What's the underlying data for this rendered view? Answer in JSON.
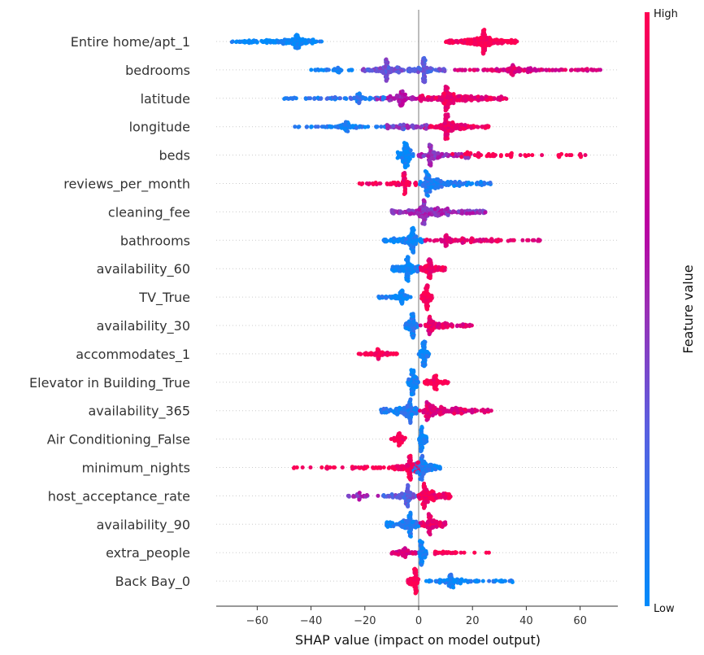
{
  "chart_data": {
    "type": "scatter",
    "subtype": "beeswarm",
    "xlabel": "SHAP value (impact on model output)",
    "xlim": [
      -76,
      74
    ],
    "xticks": [
      -60,
      -40,
      -20,
      0,
      20,
      40,
      60
    ],
    "grid": "horizontal dotted",
    "colorbar": {
      "label": "Feature value",
      "high": "High",
      "low": "Low",
      "colors": [
        "#008bfb",
        "#5a5fe0",
        "#9a2fb5",
        "#bc00a0",
        "#ff0052"
      ]
    },
    "features": [
      {
        "name": "Entire home/apt_1",
        "clusters": [
          {
            "range": [
              -70,
              -36
            ],
            "peak": -45,
            "n": 200,
            "value": 0.0
          },
          {
            "range": [
              10,
              37
            ],
            "peak": 24,
            "n": 250,
            "value": 1.0
          }
        ]
      },
      {
        "name": "bedrooms",
        "clusters": [
          {
            "range": [
              -40,
              -24
            ],
            "peak": -30,
            "n": 40,
            "value": 0.05
          },
          {
            "range": [
              -21,
              -5
            ],
            "peak": -12,
            "n": 150,
            "value": 0.35
          },
          {
            "range": [
              -4,
              10
            ],
            "peak": 2,
            "n": 130,
            "value": 0.3
          },
          {
            "range": [
              13,
              68
            ],
            "peak": 35,
            "n": 160,
            "value": 0.8
          }
        ]
      },
      {
        "name": "latitude",
        "clusters": [
          {
            "range": [
              -50,
              -10
            ],
            "peak": -22,
            "n": 90,
            "value": 0.15
          },
          {
            "range": [
              -16,
              0
            ],
            "peak": -6,
            "n": 90,
            "value": 0.6
          },
          {
            "range": [
              0,
              33
            ],
            "peak": 10,
            "n": 260,
            "value": 0.88
          }
        ]
      },
      {
        "name": "longitude",
        "clusters": [
          {
            "range": [
              -46,
              -5
            ],
            "peak": -27,
            "n": 110,
            "value": 0.1
          },
          {
            "range": [
              -12,
              5
            ],
            "peak": -6,
            "n": 70,
            "value": 0.45
          },
          {
            "range": [
              2,
              26
            ],
            "peak": 10,
            "n": 220,
            "value": 0.9
          }
        ]
      },
      {
        "name": "beds",
        "clusters": [
          {
            "range": [
              -8,
              -2
            ],
            "peak": -5,
            "n": 80,
            "value": 0.0
          },
          {
            "range": [
              0,
              20
            ],
            "peak": 4,
            "n": 80,
            "value": 0.5
          },
          {
            "range": [
              10,
              62
            ],
            "peak": 18,
            "n": 60,
            "value": 1.0
          }
        ]
      },
      {
        "name": "reviews_per_month",
        "clusters": [
          {
            "range": [
              -22,
              0
            ],
            "peak": -5,
            "n": 70,
            "value": 0.95
          },
          {
            "range": [
              0,
              27
            ],
            "peak": 3,
            "n": 160,
            "value": 0.1
          }
        ]
      },
      {
        "name": "cleaning_fee",
        "clusters": [
          {
            "range": [
              -10,
              25
            ],
            "peak": 2,
            "n": 260,
            "value": 0.5
          }
        ]
      },
      {
        "name": "bathrooms",
        "clusters": [
          {
            "range": [
              -13,
              2
            ],
            "peak": -2,
            "n": 120,
            "value": 0.05
          },
          {
            "range": [
              2,
              48
            ],
            "peak": 10,
            "n": 110,
            "value": 0.85
          }
        ]
      },
      {
        "name": "availability_60",
        "clusters": [
          {
            "range": [
              -10,
              0
            ],
            "peak": -4,
            "n": 150,
            "value": 0.05
          },
          {
            "range": [
              0,
              10
            ],
            "peak": 4,
            "n": 120,
            "value": 0.9
          }
        ]
      },
      {
        "name": "TV_True",
        "clusters": [
          {
            "range": [
              -15,
              -3
            ],
            "peak": -6,
            "n": 80,
            "value": 0.05
          },
          {
            "range": [
              1,
              5
            ],
            "peak": 3,
            "n": 100,
            "value": 1.0
          }
        ]
      },
      {
        "name": "availability_30",
        "clusters": [
          {
            "range": [
              -5,
              0
            ],
            "peak": -2,
            "n": 80,
            "value": 0.1
          },
          {
            "range": [
              0,
              20
            ],
            "peak": 4,
            "n": 110,
            "value": 0.85
          }
        ]
      },
      {
        "name": "accommodates_1",
        "clusters": [
          {
            "range": [
              -23,
              -8
            ],
            "peak": -15,
            "n": 80,
            "value": 1.0
          },
          {
            "range": [
              0,
              4
            ],
            "peak": 2,
            "n": 100,
            "value": 0.05
          }
        ]
      },
      {
        "name": "Elevator in Building_True",
        "clusters": [
          {
            "range": [
              -4,
              0
            ],
            "peak": -2,
            "n": 100,
            "value": 0.05
          },
          {
            "range": [
              2,
              11
            ],
            "peak": 6,
            "n": 80,
            "value": 1.0
          }
        ]
      },
      {
        "name": "availability_365",
        "clusters": [
          {
            "range": [
              -14,
              0
            ],
            "peak": -3,
            "n": 100,
            "value": 0.1
          },
          {
            "range": [
              0,
              27
            ],
            "peak": 3,
            "n": 130,
            "value": 0.85
          }
        ]
      },
      {
        "name": "Air Conditioning_False",
        "clusters": [
          {
            "range": [
              -11,
              -4
            ],
            "peak": -7,
            "n": 50,
            "value": 1.0
          },
          {
            "range": [
              0,
              3
            ],
            "peak": 1,
            "n": 70,
            "value": 0.05
          }
        ]
      },
      {
        "name": "minimum_nights",
        "clusters": [
          {
            "range": [
              -47,
              -10
            ],
            "peak": -20,
            "n": 40,
            "value": 1.0
          },
          {
            "range": [
              -10,
              0
            ],
            "peak": -3,
            "n": 100,
            "value": 0.95
          },
          {
            "range": [
              -2,
              8
            ],
            "peak": 1,
            "n": 120,
            "value": 0.1
          }
        ]
      },
      {
        "name": "host_acceptance_rate",
        "clusters": [
          {
            "range": [
              -27,
              -15
            ],
            "peak": -22,
            "n": 25,
            "value": 0.5
          },
          {
            "range": [
              -15,
              0
            ],
            "peak": -4,
            "n": 80,
            "value": 0.3
          },
          {
            "range": [
              -2,
              12
            ],
            "peak": 2,
            "n": 120,
            "value": 0.95
          }
        ]
      },
      {
        "name": "availability_90",
        "clusters": [
          {
            "range": [
              -12,
              0
            ],
            "peak": -3,
            "n": 120,
            "value": 0.1
          },
          {
            "range": [
              0,
              10
            ],
            "peak": 4,
            "n": 100,
            "value": 0.9
          }
        ]
      },
      {
        "name": "extra_people",
        "clusters": [
          {
            "range": [
              -10,
              0
            ],
            "peak": -5,
            "n": 60,
            "value": 0.8
          },
          {
            "range": [
              0,
              3
            ],
            "peak": 1,
            "n": 80,
            "value": 0.05
          },
          {
            "range": [
              4,
              27
            ],
            "peak": 6,
            "n": 30,
            "value": 1.0
          }
        ]
      },
      {
        "name": "Back Bay_0",
        "clusters": [
          {
            "range": [
              -4,
              0
            ],
            "peak": -1,
            "n": 80,
            "value": 1.0
          },
          {
            "range": [
              2,
              36
            ],
            "peak": 12,
            "n": 120,
            "value": 0.05
          }
        ]
      }
    ]
  }
}
